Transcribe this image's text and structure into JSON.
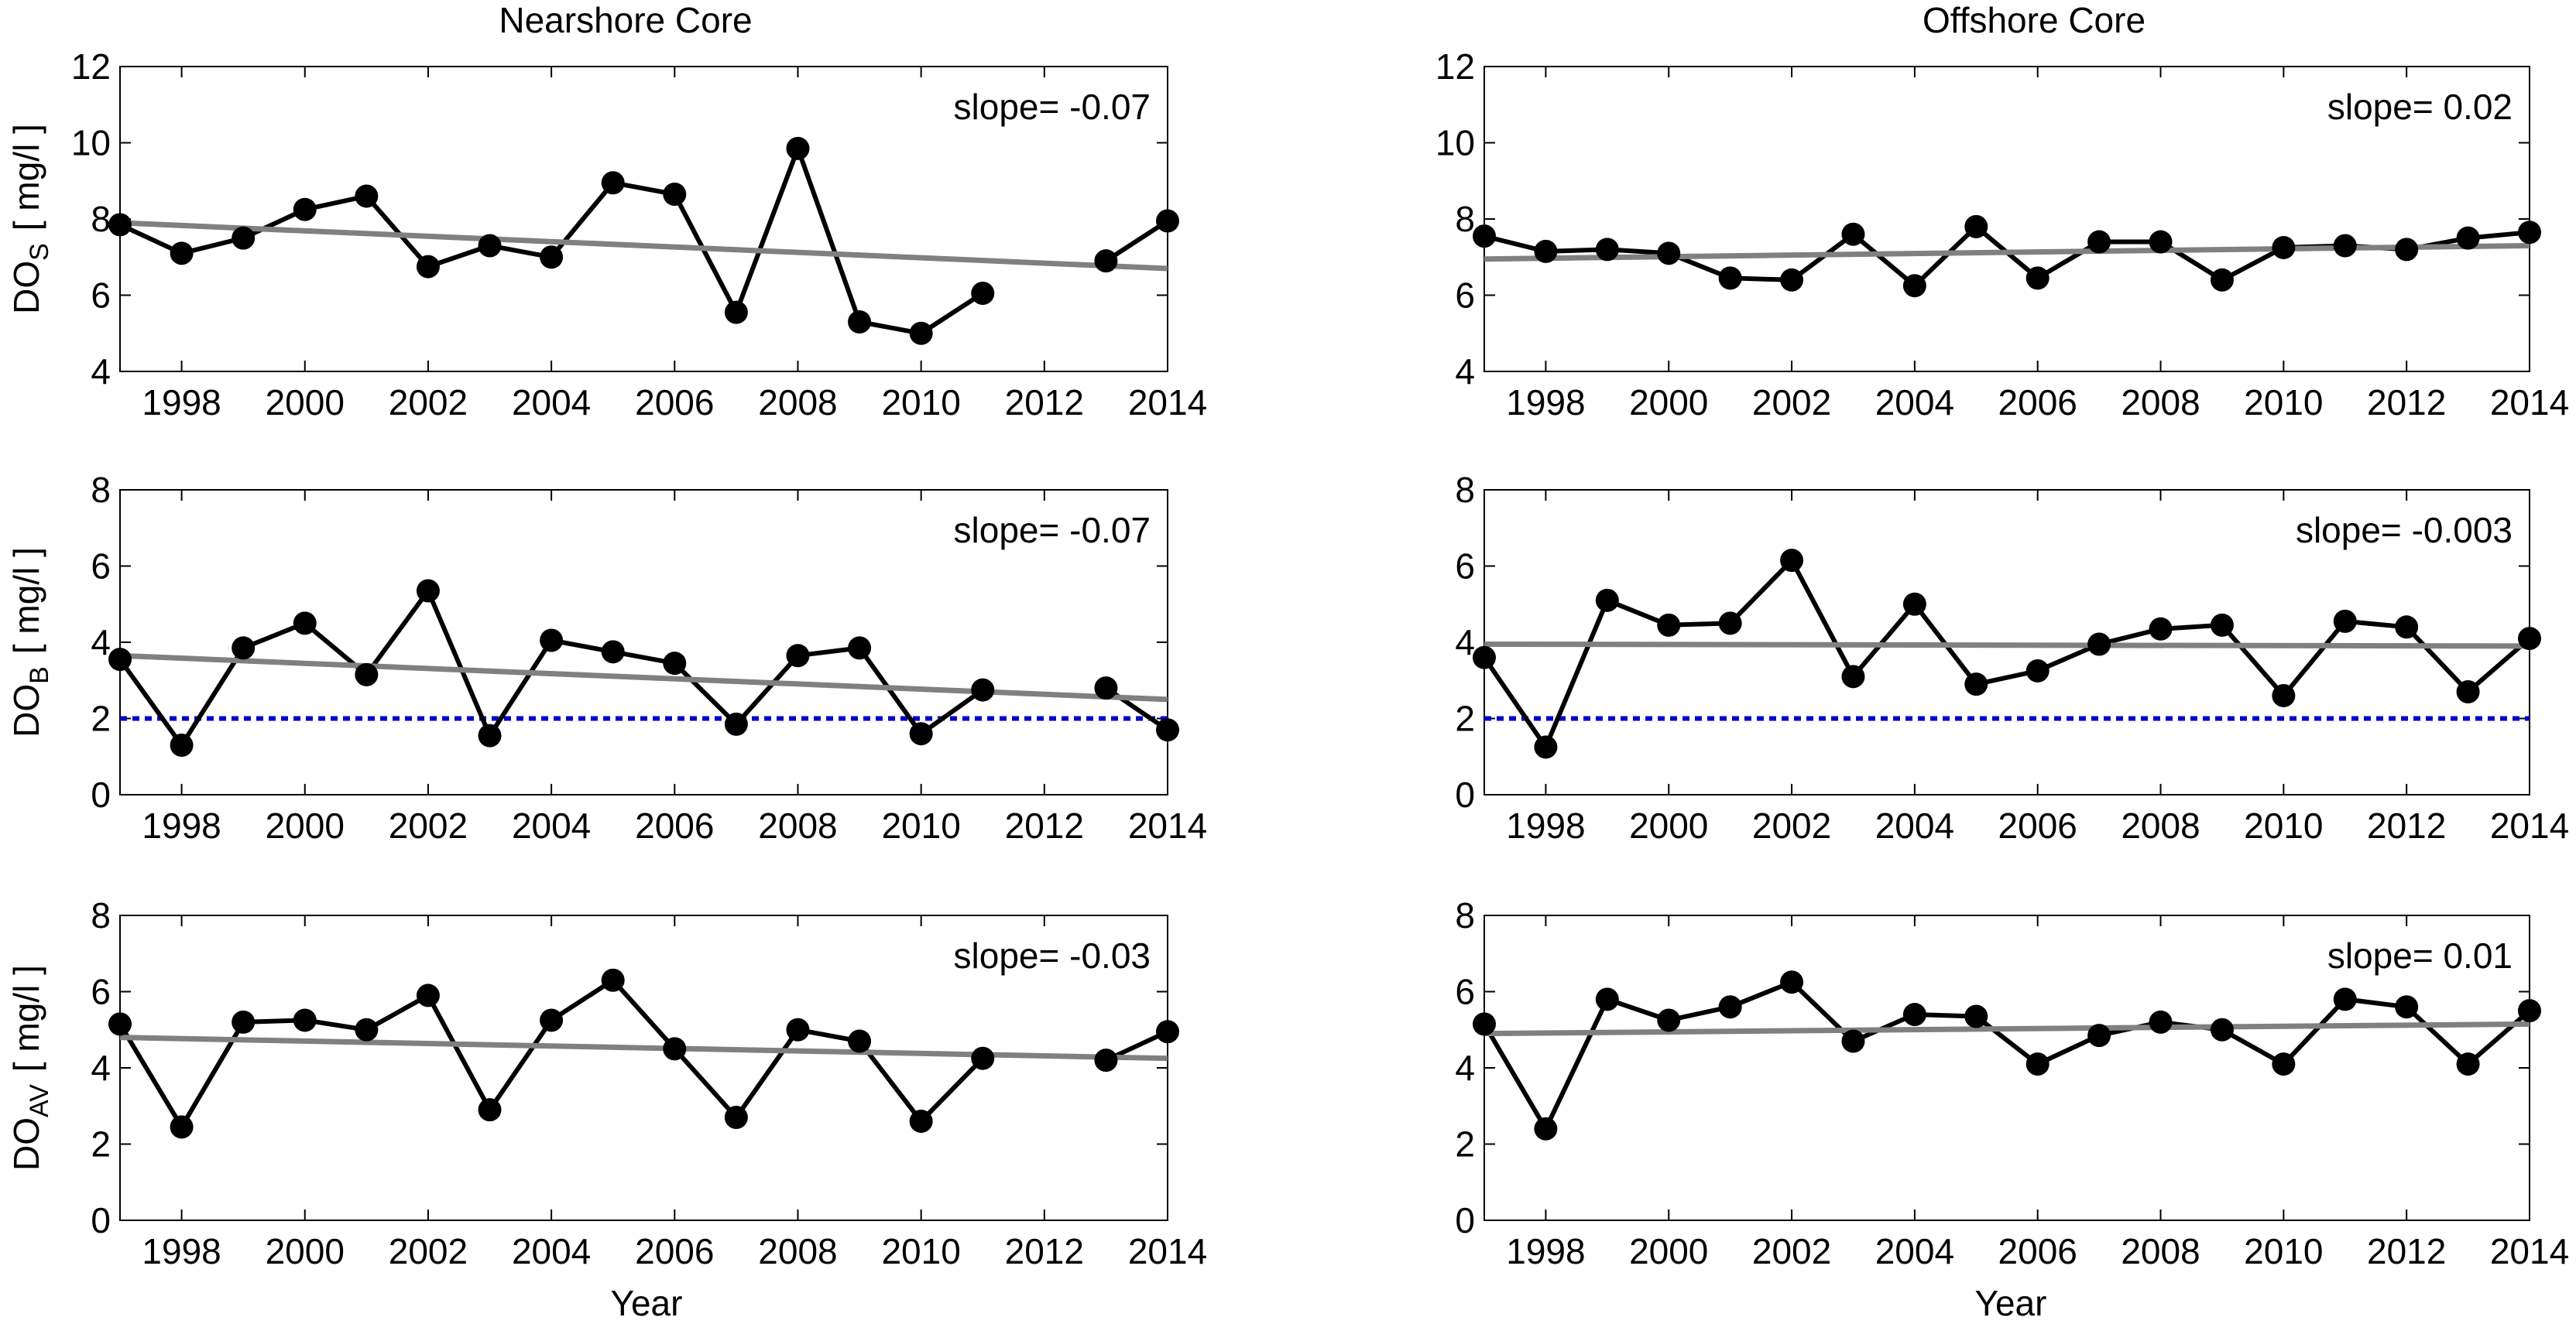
{
  "figure": {
    "columns": [
      {
        "title": "Nearshore Core"
      },
      {
        "title": "Offshore Core"
      }
    ],
    "xlabel": "Year",
    "colors": {
      "data": "#000000",
      "trend": "#808080",
      "threshold": "#0000CC"
    }
  },
  "chart_data": [
    {
      "id": "near-dos",
      "type": "line",
      "column": 0,
      "row": 0,
      "ylabel_main": "DO",
      "ylabel_sub": "S",
      "ylabel_units": "[ mg/l ]",
      "xlim": [
        1997,
        2014
      ],
      "ylim": [
        4,
        12
      ],
      "xticks": [
        1998,
        2000,
        2002,
        2004,
        2006,
        2008,
        2010,
        2012,
        2014
      ],
      "yticks": [
        4,
        6,
        8,
        10,
        12
      ],
      "slope_text": "slope= -0.07",
      "series": [
        {
          "name": "DOS",
          "x": [
            1997,
            1998,
            1999,
            2000,
            2001,
            2002,
            2003,
            2004,
            2005,
            2006,
            2007,
            2008,
            2009,
            2010,
            2011,
            2012,
            2013,
            2014
          ],
          "values": [
            7.85,
            7.1,
            7.5,
            8.25,
            8.6,
            6.75,
            7.3,
            7.0,
            8.95,
            8.65,
            5.55,
            9.85,
            5.3,
            5.0,
            6.05,
            null,
            6.9,
            7.95
          ]
        }
      ],
      "trend": {
        "x": [
          1997,
          2014
        ],
        "y": [
          7.9,
          6.7
        ]
      },
      "threshold": null
    },
    {
      "id": "off-dos",
      "type": "line",
      "column": 1,
      "row": 0,
      "ylabel_main": "",
      "ylabel_sub": "",
      "ylabel_units": "",
      "xlim": [
        1997,
        2014
      ],
      "ylim": [
        4,
        12
      ],
      "xticks": [
        1998,
        2000,
        2002,
        2004,
        2006,
        2008,
        2010,
        2012,
        2014
      ],
      "yticks": [
        4,
        6,
        8,
        10,
        12
      ],
      "slope_text": "slope= 0.02",
      "series": [
        {
          "name": "DOS",
          "x": [
            1997,
            1998,
            1999,
            2000,
            2001,
            2002,
            2003,
            2004,
            2005,
            2006,
            2007,
            2008,
            2009,
            2010,
            2011,
            2012,
            2013,
            2014
          ],
          "values": [
            7.55,
            7.15,
            7.2,
            7.1,
            6.45,
            6.4,
            7.6,
            6.25,
            7.8,
            6.45,
            7.4,
            7.4,
            6.4,
            7.25,
            7.3,
            7.2,
            7.5,
            7.65
          ]
        }
      ],
      "trend": {
        "x": [
          1997,
          2014
        ],
        "y": [
          6.95,
          7.3
        ]
      },
      "threshold": null
    },
    {
      "id": "near-dob",
      "type": "line",
      "column": 0,
      "row": 1,
      "ylabel_main": "DO",
      "ylabel_sub": "B",
      "ylabel_units": "[ mg/l ]",
      "xlim": [
        1997,
        2014
      ],
      "ylim": [
        0,
        8
      ],
      "xticks": [
        1998,
        2000,
        2002,
        2004,
        2006,
        2008,
        2010,
        2012,
        2014
      ],
      "yticks": [
        0,
        2,
        4,
        6,
        8
      ],
      "slope_text": "slope= -0.07",
      "series": [
        {
          "name": "DOB",
          "x": [
            1997,
            1998,
            1999,
            2000,
            2001,
            2002,
            2003,
            2004,
            2005,
            2006,
            2007,
            2008,
            2009,
            2010,
            2011,
            2012,
            2013,
            2014
          ],
          "values": [
            3.55,
            1.3,
            3.85,
            4.5,
            3.15,
            5.35,
            1.55,
            4.05,
            3.75,
            3.45,
            1.85,
            3.65,
            3.85,
            1.6,
            2.75,
            null,
            2.8,
            1.7
          ]
        }
      ],
      "trend": {
        "x": [
          1997,
          2014
        ],
        "y": [
          3.65,
          2.5
        ]
      },
      "threshold": 2
    },
    {
      "id": "off-dob",
      "type": "line",
      "column": 1,
      "row": 1,
      "ylabel_main": "",
      "ylabel_sub": "",
      "ylabel_units": "",
      "xlim": [
        1997,
        2014
      ],
      "ylim": [
        0,
        8
      ],
      "xticks": [
        1998,
        2000,
        2002,
        2004,
        2006,
        2008,
        2010,
        2012,
        2014
      ],
      "yticks": [
        0,
        2,
        4,
        6,
        8
      ],
      "slope_text": "slope= -0.003",
      "series": [
        {
          "name": "DOB",
          "x": [
            1997,
            1998,
            1999,
            2000,
            2001,
            2002,
            2003,
            2004,
            2005,
            2006,
            2007,
            2008,
            2009,
            2010,
            2011,
            2012,
            2013,
            2014
          ],
          "values": [
            3.6,
            1.25,
            5.1,
            4.45,
            4.5,
            6.15,
            3.1,
            5.0,
            2.9,
            3.25,
            3.95,
            4.35,
            4.45,
            2.6,
            4.55,
            4.4,
            2.7,
            4.1
          ]
        }
      ],
      "trend": {
        "x": [
          1997,
          2014
        ],
        "y": [
          3.95,
          3.9
        ]
      },
      "threshold": 2
    },
    {
      "id": "near-doav",
      "type": "line",
      "column": 0,
      "row": 2,
      "ylabel_main": "DO",
      "ylabel_sub": "AV",
      "ylabel_units": "[ mg/l ]",
      "xlim": [
        1997,
        2014
      ],
      "ylim": [
        0,
        8
      ],
      "xticks": [
        1998,
        2000,
        2002,
        2004,
        2006,
        2008,
        2010,
        2012,
        2014
      ],
      "yticks": [
        0,
        2,
        4,
        6,
        8
      ],
      "slope_text": "slope= -0.03",
      "series": [
        {
          "name": "DOAV",
          "x": [
            1997,
            1998,
            1999,
            2000,
            2001,
            2002,
            2003,
            2004,
            2005,
            2006,
            2007,
            2008,
            2009,
            2010,
            2011,
            2012,
            2013,
            2014
          ],
          "values": [
            5.15,
            2.45,
            5.2,
            5.25,
            5.0,
            5.9,
            2.9,
            5.25,
            6.3,
            4.5,
            2.7,
            5.0,
            4.7,
            2.6,
            4.25,
            null,
            4.2,
            4.95
          ]
        }
      ],
      "trend": {
        "x": [
          1997,
          2014
        ],
        "y": [
          4.8,
          4.25
        ]
      },
      "threshold": null
    },
    {
      "id": "off-doav",
      "type": "line",
      "column": 1,
      "row": 2,
      "ylabel_main": "",
      "ylabel_sub": "",
      "ylabel_units": "",
      "xlim": [
        1997,
        2014
      ],
      "ylim": [
        0,
        8
      ],
      "xticks": [
        1998,
        2000,
        2002,
        2004,
        2006,
        2008,
        2010,
        2012,
        2014
      ],
      "yticks": [
        0,
        2,
        4,
        6,
        8
      ],
      "slope_text": "slope= 0.01",
      "series": [
        {
          "name": "DOAV",
          "x": [
            1997,
            1998,
            1999,
            2000,
            2001,
            2002,
            2003,
            2004,
            2005,
            2006,
            2007,
            2008,
            2009,
            2010,
            2011,
            2012,
            2013,
            2014
          ],
          "values": [
            5.15,
            2.4,
            5.8,
            5.25,
            5.6,
            6.25,
            4.7,
            5.4,
            5.35,
            4.1,
            4.85,
            5.2,
            5.0,
            4.1,
            5.8,
            5.6,
            4.1,
            5.5
          ]
        }
      ],
      "trend": {
        "x": [
          1997,
          2014
        ],
        "y": [
          4.9,
          5.15
        ]
      },
      "threshold": null
    }
  ]
}
